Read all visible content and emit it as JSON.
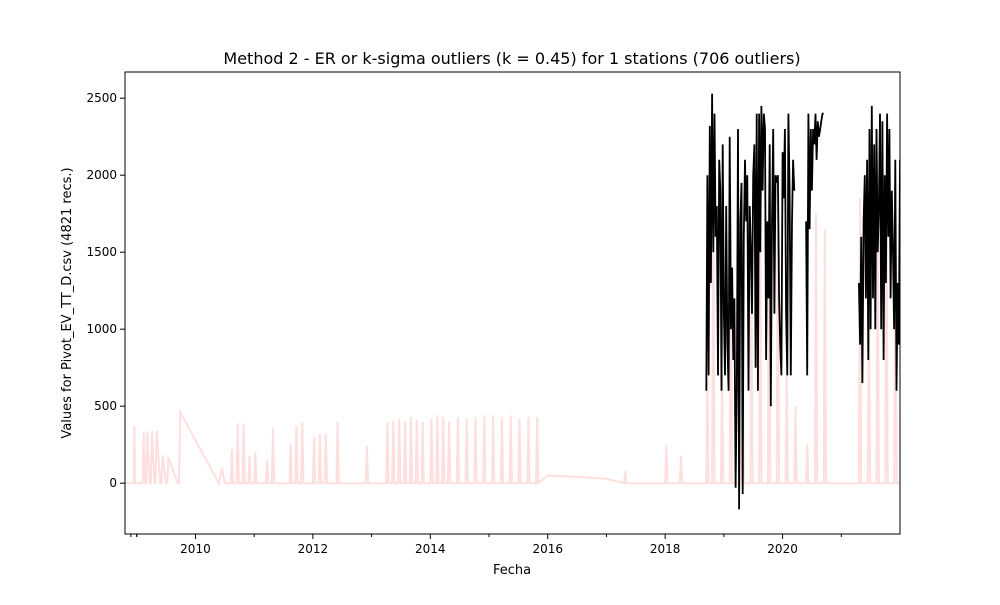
{
  "chart_data": {
    "type": "line",
    "title": "Method 2 - ER or k-sigma outliers (k = 0.45) for 1 stations (706 outliers)",
    "xlabel": "Fecha",
    "ylabel": "Values for Pivot_EV_TT_D.csv (4821 recs.)",
    "xlim": [
      2008.8,
      2022.0
    ],
    "ylim": [
      -330,
      2670
    ],
    "x_ticks": [
      2010,
      2012,
      2014,
      2016,
      2018,
      2020
    ],
    "x_minor_ticks": [
      2009,
      2011,
      2013,
      2015,
      2017,
      2019,
      2021
    ],
    "y_ticks": [
      0,
      500,
      1000,
      1500,
      2000,
      2500
    ],
    "grid": false,
    "legend": "none",
    "series": [
      {
        "color": "#ffdede",
        "style": "spiky",
        "x": [
          2008.8,
          2008.95,
          2008.96,
          2008.97,
          2009.1,
          2009.12,
          2009.14,
          2009.16,
          2009.18,
          2009.22,
          2009.24,
          2009.26,
          2009.3,
          2009.32,
          2009.34,
          2009.4,
          2009.42,
          2009.44,
          2009.5,
          2009.52,
          2009.54,
          2009.7,
          2009.72,
          2009.74,
          2010.4,
          2010.45,
          2010.5,
          2010.6,
          2010.62,
          2010.64,
          2010.7,
          2010.72,
          2010.74,
          2010.8,
          2010.82,
          2010.84,
          2010.9,
          2010.92,
          2010.94,
          2011.0,
          2011.02,
          2011.04,
          2011.2,
          2011.22,
          2011.24,
          2011.3,
          2011.32,
          2011.34,
          2011.6,
          2011.62,
          2011.64,
          2011.7,
          2011.72,
          2011.74,
          2011.8,
          2011.82,
          2011.84,
          2012.0,
          2012.02,
          2012.04,
          2012.1,
          2012.12,
          2012.14,
          2012.2,
          2012.22,
          2012.24,
          2012.4,
          2012.42,
          2012.44,
          2012.9,
          2012.92,
          2012.94,
          2013.25,
          2013.27,
          2013.29,
          2013.35,
          2013.37,
          2013.39,
          2013.45,
          2013.47,
          2013.49,
          2013.55,
          2013.57,
          2013.59,
          2013.65,
          2013.67,
          2013.69,
          2013.75,
          2013.77,
          2013.79,
          2013.85,
          2013.87,
          2013.89,
          2014.0,
          2014.02,
          2014.04,
          2014.1,
          2014.12,
          2014.14,
          2014.2,
          2014.22,
          2014.24,
          2014.3,
          2014.32,
          2014.34,
          2014.45,
          2014.47,
          2014.49,
          2014.6,
          2014.62,
          2014.64,
          2014.75,
          2014.77,
          2014.79,
          2014.9,
          2014.92,
          2014.94,
          2015.05,
          2015.07,
          2015.09,
          2015.2,
          2015.22,
          2015.24,
          2015.35,
          2015.37,
          2015.39,
          2015.5,
          2015.52,
          2015.54,
          2015.65,
          2015.67,
          2015.69,
          2015.8,
          2015.82,
          2015.84,
          2016.0,
          2016.5,
          2017.0,
          2017.3,
          2017.32,
          2017.34,
          2018.0,
          2018.02,
          2018.04,
          2018.25,
          2018.27,
          2018.29,
          2018.7,
          2018.72,
          2018.74,
          2018.8,
          2018.82,
          2018.84,
          2018.95,
          2018.97,
          2018.99,
          2019.1,
          2019.12,
          2019.14,
          2019.3,
          2019.32,
          2019.34,
          2019.45,
          2019.47,
          2019.49,
          2019.6,
          2019.62,
          2019.64,
          2019.75,
          2019.77,
          2019.79,
          2019.9,
          2019.92,
          2019.94,
          2020.05,
          2020.07,
          2020.09,
          2020.2,
          2020.22,
          2020.24,
          2020.4,
          2020.42,
          2020.44,
          2020.55,
          2020.57,
          2020.59,
          2020.7,
          2020.72,
          2020.74,
          2021.3,
          2021.32,
          2021.34,
          2021.45,
          2021.47,
          2021.49,
          2021.6,
          2021.62,
          2021.64,
          2021.75,
          2021.77,
          2021.79,
          2021.9,
          2021.92,
          2021.94,
          2022.0
        ],
        "y": [
          0,
          0,
          370,
          0,
          0,
          330,
          0,
          0,
          330,
          0,
          0,
          340,
          0,
          0,
          340,
          0,
          0,
          180,
          0,
          0,
          170,
          0,
          0,
          460,
          0,
          100,
          0,
          0,
          220,
          0,
          0,
          390,
          0,
          0,
          390,
          0,
          0,
          180,
          0,
          0,
          200,
          0,
          0,
          150,
          0,
          0,
          360,
          0,
          0,
          250,
          0,
          0,
          370,
          0,
          0,
          400,
          0,
          0,
          300,
          0,
          0,
          320,
          0,
          0,
          320,
          0,
          0,
          400,
          0,
          0,
          240,
          0,
          0,
          400,
          0,
          0,
          410,
          0,
          0,
          420,
          0,
          0,
          400,
          0,
          0,
          430,
          0,
          0,
          410,
          0,
          0,
          400,
          0,
          0,
          420,
          0,
          0,
          440,
          0,
          0,
          430,
          0,
          0,
          400,
          0,
          0,
          430,
          0,
          0,
          420,
          0,
          0,
          430,
          0,
          0,
          440,
          0,
          0,
          440,
          0,
          0,
          430,
          0,
          0,
          440,
          0,
          0,
          420,
          0,
          0,
          430,
          0,
          0,
          430,
          0,
          50,
          40,
          30,
          0,
          80,
          0,
          0,
          250,
          0,
          0,
          180,
          0,
          0,
          680,
          0,
          0,
          1880,
          0,
          0,
          700,
          0,
          0,
          1850,
          0,
          0,
          900,
          0,
          0,
          1400,
          0,
          0,
          1750,
          0,
          0,
          1950,
          0,
          0,
          1850,
          0,
          0,
          700,
          0,
          0,
          500,
          0,
          0,
          250,
          0,
          0,
          1750,
          0,
          0,
          1650,
          0,
          0,
          1850,
          0,
          0,
          1300,
          0,
          0,
          1800,
          0,
          0,
          1900,
          0,
          0,
          1600,
          0,
          0
        ]
      },
      {
        "color": "#000000",
        "style": "outliers",
        "x": [
          2018.7,
          2018.72,
          2018.74,
          2018.76,
          2018.78,
          2018.8,
          2018.82,
          2018.84,
          2018.86,
          2018.88,
          2018.9,
          2018.92,
          2018.94,
          2018.96,
          2018.98,
          2019.0,
          2019.02,
          2019.04,
          2019.06,
          2019.08,
          2019.1,
          2019.12,
          2019.14,
          2019.16,
          2019.18,
          2019.2,
          2019.22,
          2019.24,
          2019.26,
          2019.28,
          2019.3,
          2019.32,
          2019.34,
          2019.36,
          2019.38,
          2019.4,
          2019.42,
          2019.44,
          2019.46,
          2019.48,
          2019.5,
          2019.52,
          2019.54,
          2019.56,
          2019.58,
          2019.6,
          2019.62,
          2019.64,
          2019.66,
          2019.68,
          2019.7,
          2019.72,
          2019.74,
          2019.76,
          2019.78,
          2019.8,
          2019.82,
          2019.84,
          2019.86,
          2019.88,
          2019.9,
          2019.92,
          2019.94,
          2019.96,
          2019.98,
          2020.0,
          2020.02,
          2020.04,
          2020.06,
          2020.08,
          2020.1,
          2020.12,
          2020.14,
          2020.16,
          2020.18,
          2020.2,
          null,
          2020.4,
          2020.42,
          2020.44,
          2020.46,
          2020.48,
          2020.5,
          2020.52,
          2020.54,
          2020.56,
          2020.58,
          2020.6,
          2020.62,
          2020.64,
          2020.66,
          2020.68,
          2020.7,
          null,
          2021.3,
          2021.32,
          2021.34,
          2021.36,
          2021.38,
          2021.4,
          2021.42,
          2021.44,
          2021.46,
          2021.48,
          2021.5,
          2021.52,
          2021.54,
          2021.56,
          2021.58,
          2021.6,
          2021.62,
          2021.64,
          2021.66,
          2021.68,
          2021.7,
          2021.72,
          2021.74,
          2021.76,
          2021.78,
          2021.8,
          2021.82,
          2021.84,
          2021.86,
          2021.88,
          2021.9,
          2021.92,
          2021.94,
          2021.96,
          2021.98,
          2022.0
        ],
        "y": [
          600,
          2000,
          700,
          2320,
          1300,
          2530,
          1500,
          2400,
          1600,
          1800,
          700,
          2100,
          1900,
          600,
          2200,
          1100,
          700,
          1800,
          900,
          600,
          2250,
          1000,
          1400,
          800,
          1200,
          -30,
          600,
          2300,
          -170,
          1700,
          1950,
          -70,
          1600,
          2100,
          1700,
          2000,
          600,
          1800,
          1500,
          1100,
          2000,
          2200,
          750,
          2400,
          600,
          2400,
          1500,
          2450,
          1900,
          2400,
          2300,
          800,
          1700,
          1200,
          2200,
          500,
          1700,
          2300,
          1100,
          2000,
          1950,
          2000,
          1200,
          900,
          700,
          2150,
          1850,
          2300,
          1100,
          700,
          2400,
          1900,
          700,
          1700,
          2100,
          1900,
          null,
          1700,
          700,
          2400,
          1650,
          2300,
          1900,
          2300,
          2200,
          2400,
          2100,
          2350,
          2250,
          2300,
          2350,
          2400,
          2400,
          null,
          1300,
          900,
          1600,
          650,
          1700,
          2000,
          1200,
          2100,
          800,
          2300,
          1000,
          2450,
          1200,
          2200,
          1000,
          2300,
          1500,
          1800,
          2400,
          1000,
          2350,
          800,
          2000,
          1300,
          2400,
          1600,
          2300,
          1200,
          1900,
          1500,
          1000,
          2100,
          600,
          1300,
          900,
          2100
        ]
      }
    ]
  }
}
